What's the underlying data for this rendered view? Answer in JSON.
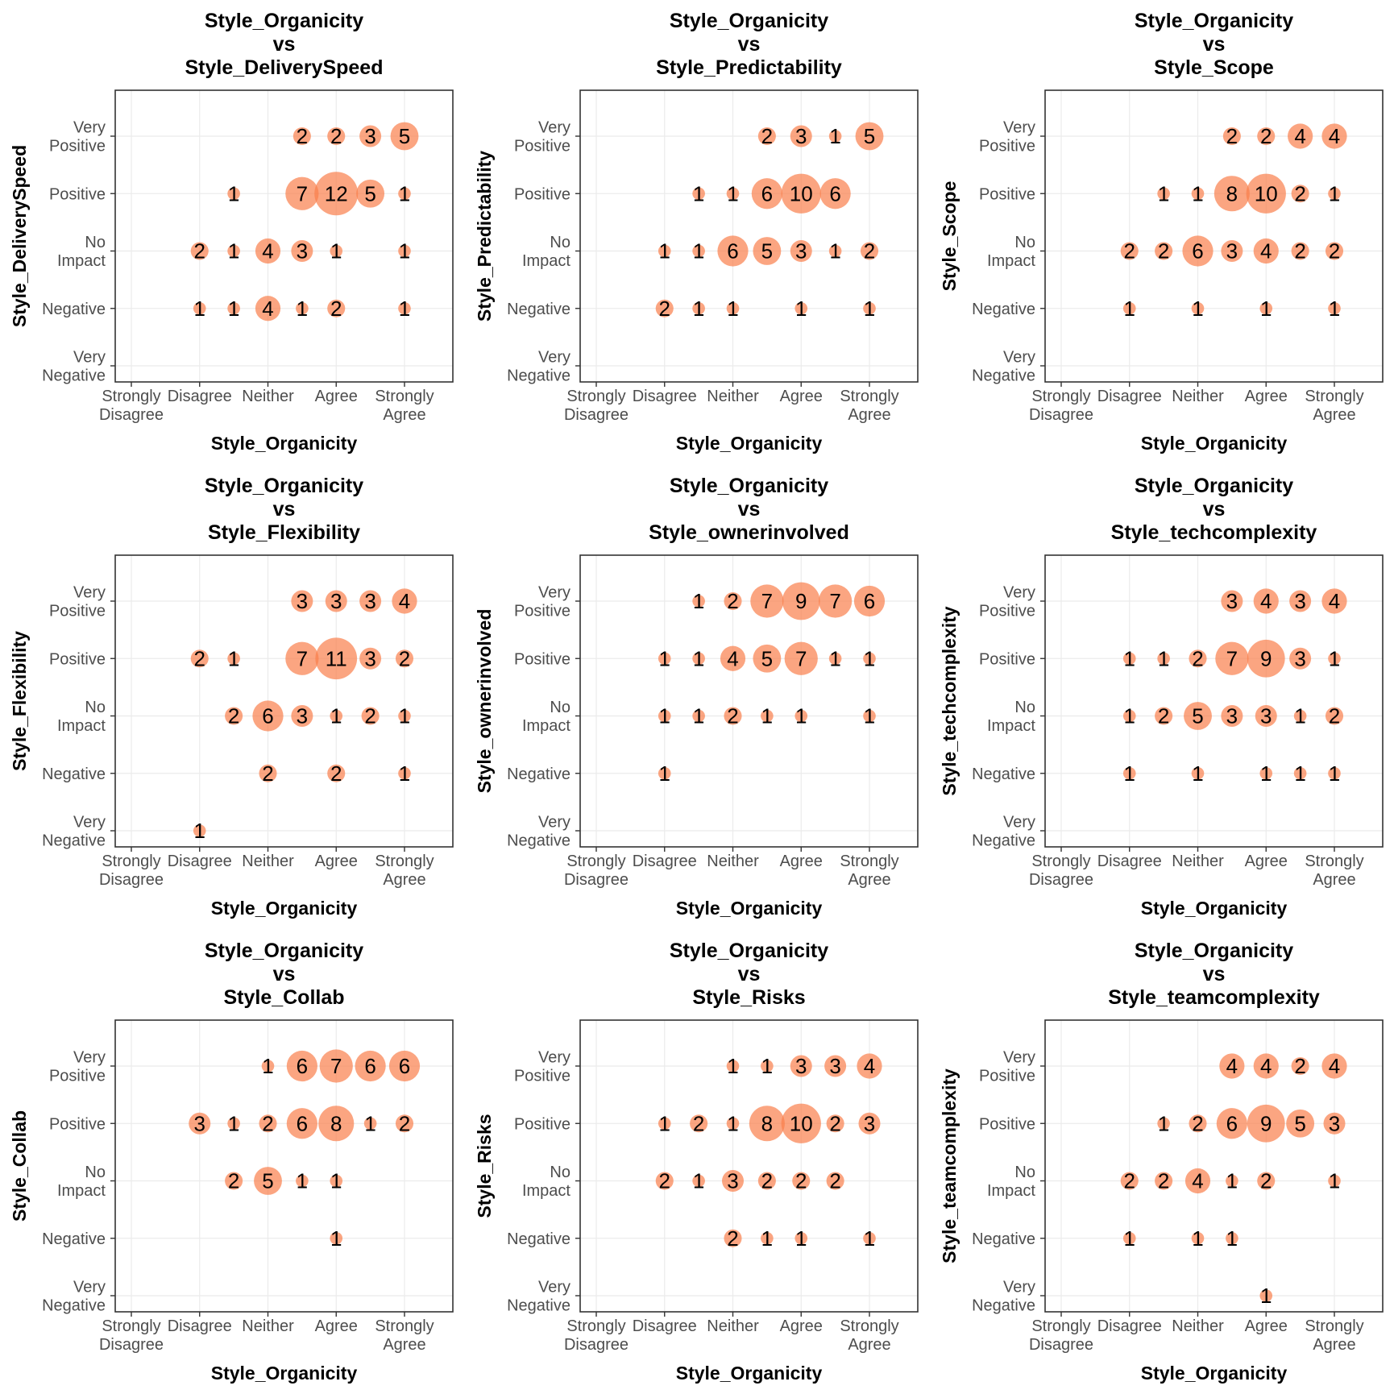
{
  "style": {
    "bubble_fill": "#fa7f4c",
    "bubble_opacity": 0.7,
    "grid_color": "#ebebeb",
    "frame_color": "#333333"
  },
  "x_categories": [
    "Strongly Disagree",
    "Disagree",
    "Neither",
    "Agree",
    "Strongly Agree"
  ],
  "y_categories": [
    "Very Negative",
    "Negative",
    "No Impact",
    "Positive",
    "Very Positive"
  ],
  "chart_data": [
    {
      "type": "scatter",
      "title": "Style_Organicity vs Style_DeliverySpeed",
      "title_lines": [
        "Style_Organicity",
        "vs",
        "Style_DeliverySpeed"
      ],
      "xlabel": "Style_Organicity",
      "ylabel": "Style_DeliverySpeed",
      "points": [
        {
          "x": 3.5,
          "y": 5,
          "n": 2
        },
        {
          "x": 4,
          "y": 5,
          "n": 2
        },
        {
          "x": 4.5,
          "y": 5,
          "n": 3
        },
        {
          "x": 5,
          "y": 5,
          "n": 5
        },
        {
          "x": 2.5,
          "y": 4,
          "n": 1
        },
        {
          "x": 3.5,
          "y": 4,
          "n": 7
        },
        {
          "x": 4,
          "y": 4,
          "n": 12
        },
        {
          "x": 4.5,
          "y": 4,
          "n": 5
        },
        {
          "x": 5,
          "y": 4,
          "n": 1
        },
        {
          "x": 2,
          "y": 3,
          "n": 2
        },
        {
          "x": 2.5,
          "y": 3,
          "n": 1
        },
        {
          "x": 3,
          "y": 3,
          "n": 4
        },
        {
          "x": 3.5,
          "y": 3,
          "n": 3
        },
        {
          "x": 4,
          "y": 3,
          "n": 1
        },
        {
          "x": 5,
          "y": 3,
          "n": 1
        },
        {
          "x": 2,
          "y": 2,
          "n": 1
        },
        {
          "x": 2.5,
          "y": 2,
          "n": 1
        },
        {
          "x": 3,
          "y": 2,
          "n": 4
        },
        {
          "x": 3.5,
          "y": 2,
          "n": 1
        },
        {
          "x": 4,
          "y": 2,
          "n": 2
        },
        {
          "x": 5,
          "y": 2,
          "n": 1
        }
      ]
    },
    {
      "type": "scatter",
      "title": "Style_Organicity vs Style_Predictability",
      "title_lines": [
        "Style_Organicity",
        "vs",
        "Style_Predictability"
      ],
      "xlabel": "Style_Organicity",
      "ylabel": "Style_Predictability",
      "points": [
        {
          "x": 3.5,
          "y": 5,
          "n": 2
        },
        {
          "x": 4,
          "y": 5,
          "n": 3
        },
        {
          "x": 4.5,
          "y": 5,
          "n": 1
        },
        {
          "x": 5,
          "y": 5,
          "n": 5
        },
        {
          "x": 2.5,
          "y": 4,
          "n": 1
        },
        {
          "x": 3,
          "y": 4,
          "n": 1
        },
        {
          "x": 3.5,
          "y": 4,
          "n": 6
        },
        {
          "x": 4,
          "y": 4,
          "n": 10
        },
        {
          "x": 4.5,
          "y": 4,
          "n": 6
        },
        {
          "x": 2,
          "y": 3,
          "n": 1
        },
        {
          "x": 2.5,
          "y": 3,
          "n": 1
        },
        {
          "x": 3,
          "y": 3,
          "n": 6
        },
        {
          "x": 3.5,
          "y": 3,
          "n": 5
        },
        {
          "x": 4,
          "y": 3,
          "n": 3
        },
        {
          "x": 4.5,
          "y": 3,
          "n": 1
        },
        {
          "x": 5,
          "y": 3,
          "n": 2
        },
        {
          "x": 2,
          "y": 2,
          "n": 2
        },
        {
          "x": 2.5,
          "y": 2,
          "n": 1
        },
        {
          "x": 3,
          "y": 2,
          "n": 1
        },
        {
          "x": 4,
          "y": 2,
          "n": 1
        },
        {
          "x": 5,
          "y": 2,
          "n": 1
        }
      ]
    },
    {
      "type": "scatter",
      "title": "Style_Organicity vs Style_Scope",
      "title_lines": [
        "Style_Organicity",
        "vs",
        "Style_Scope"
      ],
      "xlabel": "Style_Organicity",
      "ylabel": "Style_Scope",
      "points": [
        {
          "x": 3.5,
          "y": 5,
          "n": 2
        },
        {
          "x": 4,
          "y": 5,
          "n": 2
        },
        {
          "x": 4.5,
          "y": 5,
          "n": 4
        },
        {
          "x": 5,
          "y": 5,
          "n": 4
        },
        {
          "x": 2.5,
          "y": 4,
          "n": 1
        },
        {
          "x": 3,
          "y": 4,
          "n": 1
        },
        {
          "x": 3.5,
          "y": 4,
          "n": 8
        },
        {
          "x": 4,
          "y": 4,
          "n": 10
        },
        {
          "x": 4.5,
          "y": 4,
          "n": 2
        },
        {
          "x": 5,
          "y": 4,
          "n": 1
        },
        {
          "x": 2,
          "y": 3,
          "n": 2
        },
        {
          "x": 2.5,
          "y": 3,
          "n": 2
        },
        {
          "x": 3,
          "y": 3,
          "n": 6
        },
        {
          "x": 3.5,
          "y": 3,
          "n": 3
        },
        {
          "x": 4,
          "y": 3,
          "n": 4
        },
        {
          "x": 4.5,
          "y": 3,
          "n": 2
        },
        {
          "x": 5,
          "y": 3,
          "n": 2
        },
        {
          "x": 2,
          "y": 2,
          "n": 1
        },
        {
          "x": 3,
          "y": 2,
          "n": 1
        },
        {
          "x": 4,
          "y": 2,
          "n": 1
        },
        {
          "x": 5,
          "y": 2,
          "n": 1
        }
      ]
    },
    {
      "type": "scatter",
      "title": "Style_Organicity vs Style_Flexibility",
      "title_lines": [
        "Style_Organicity",
        "vs",
        "Style_Flexibility"
      ],
      "xlabel": "Style_Organicity",
      "ylabel": "Style_Flexibility",
      "points": [
        {
          "x": 3.5,
          "y": 5,
          "n": 3
        },
        {
          "x": 4,
          "y": 5,
          "n": 3
        },
        {
          "x": 4.5,
          "y": 5,
          "n": 3
        },
        {
          "x": 5,
          "y": 5,
          "n": 4
        },
        {
          "x": 2,
          "y": 4,
          "n": 2
        },
        {
          "x": 2.5,
          "y": 4,
          "n": 1
        },
        {
          "x": 3.5,
          "y": 4,
          "n": 7
        },
        {
          "x": 4,
          "y": 4,
          "n": 11
        },
        {
          "x": 4.5,
          "y": 4,
          "n": 3
        },
        {
          "x": 5,
          "y": 4,
          "n": 2
        },
        {
          "x": 2.5,
          "y": 3,
          "n": 2
        },
        {
          "x": 3,
          "y": 3,
          "n": 6
        },
        {
          "x": 3.5,
          "y": 3,
          "n": 3
        },
        {
          "x": 4,
          "y": 3,
          "n": 1
        },
        {
          "x": 4.5,
          "y": 3,
          "n": 2
        },
        {
          "x": 5,
          "y": 3,
          "n": 1
        },
        {
          "x": 3,
          "y": 2,
          "n": 2
        },
        {
          "x": 4,
          "y": 2,
          "n": 2
        },
        {
          "x": 5,
          "y": 2,
          "n": 1
        },
        {
          "x": 2,
          "y": 1,
          "n": 1
        }
      ]
    },
    {
      "type": "scatter",
      "title": "Style_Organicity vs Style_ownerinvolved",
      "title_lines": [
        "Style_Organicity",
        "vs",
        "Style_ownerinvolved"
      ],
      "xlabel": "Style_Organicity",
      "ylabel": "Style_ownerinvolved",
      "points": [
        {
          "x": 2.5,
          "y": 5,
          "n": 1
        },
        {
          "x": 3,
          "y": 5,
          "n": 2
        },
        {
          "x": 3.5,
          "y": 5,
          "n": 7
        },
        {
          "x": 4,
          "y": 5,
          "n": 9
        },
        {
          "x": 4.5,
          "y": 5,
          "n": 7
        },
        {
          "x": 5,
          "y": 5,
          "n": 6
        },
        {
          "x": 2,
          "y": 4,
          "n": 1
        },
        {
          "x": 2.5,
          "y": 4,
          "n": 1
        },
        {
          "x": 3,
          "y": 4,
          "n": 4
        },
        {
          "x": 3.5,
          "y": 4,
          "n": 5
        },
        {
          "x": 4,
          "y": 4,
          "n": 7
        },
        {
          "x": 4.5,
          "y": 4,
          "n": 1
        },
        {
          "x": 5,
          "y": 4,
          "n": 1
        },
        {
          "x": 2,
          "y": 3,
          "n": 1
        },
        {
          "x": 2.5,
          "y": 3,
          "n": 1
        },
        {
          "x": 3,
          "y": 3,
          "n": 2
        },
        {
          "x": 3.5,
          "y": 3,
          "n": 1
        },
        {
          "x": 4,
          "y": 3,
          "n": 1
        },
        {
          "x": 5,
          "y": 3,
          "n": 1
        },
        {
          "x": 2,
          "y": 2,
          "n": 1
        }
      ]
    },
    {
      "type": "scatter",
      "title": "Style_Organicity vs Style_techcomplexity",
      "title_lines": [
        "Style_Organicity",
        "vs",
        "Style_techcomplexity"
      ],
      "xlabel": "Style_Organicity",
      "ylabel": "Style_techcomplexity",
      "points": [
        {
          "x": 3.5,
          "y": 5,
          "n": 3
        },
        {
          "x": 4,
          "y": 5,
          "n": 4
        },
        {
          "x": 4.5,
          "y": 5,
          "n": 3
        },
        {
          "x": 5,
          "y": 5,
          "n": 4
        },
        {
          "x": 2,
          "y": 4,
          "n": 1
        },
        {
          "x": 2.5,
          "y": 4,
          "n": 1
        },
        {
          "x": 3,
          "y": 4,
          "n": 2
        },
        {
          "x": 3.5,
          "y": 4,
          "n": 7
        },
        {
          "x": 4,
          "y": 4,
          "n": 9
        },
        {
          "x": 4.5,
          "y": 4,
          "n": 3
        },
        {
          "x": 5,
          "y": 4,
          "n": 1
        },
        {
          "x": 2,
          "y": 3,
          "n": 1
        },
        {
          "x": 2.5,
          "y": 3,
          "n": 2
        },
        {
          "x": 3,
          "y": 3,
          "n": 5
        },
        {
          "x": 3.5,
          "y": 3,
          "n": 3
        },
        {
          "x": 4,
          "y": 3,
          "n": 3
        },
        {
          "x": 4.5,
          "y": 3,
          "n": 1
        },
        {
          "x": 5,
          "y": 3,
          "n": 2
        },
        {
          "x": 2,
          "y": 2,
          "n": 1
        },
        {
          "x": 3,
          "y": 2,
          "n": 1
        },
        {
          "x": 4,
          "y": 2,
          "n": 1
        },
        {
          "x": 4.5,
          "y": 2,
          "n": 1
        },
        {
          "x": 5,
          "y": 2,
          "n": 1
        }
      ]
    },
    {
      "type": "scatter",
      "title": "Style_Organicity vs Style_Collab",
      "title_lines": [
        "Style_Organicity",
        "vs",
        "Style_Collab"
      ],
      "xlabel": "Style_Organicity",
      "ylabel": "Style_Collab",
      "points": [
        {
          "x": 3,
          "y": 5,
          "n": 1
        },
        {
          "x": 3.5,
          "y": 5,
          "n": 6
        },
        {
          "x": 4,
          "y": 5,
          "n": 7
        },
        {
          "x": 4.5,
          "y": 5,
          "n": 6
        },
        {
          "x": 5,
          "y": 5,
          "n": 6
        },
        {
          "x": 2,
          "y": 4,
          "n": 3
        },
        {
          "x": 2.5,
          "y": 4,
          "n": 1
        },
        {
          "x": 3,
          "y": 4,
          "n": 2
        },
        {
          "x": 3.5,
          "y": 4,
          "n": 6
        },
        {
          "x": 4,
          "y": 4,
          "n": 8
        },
        {
          "x": 4.5,
          "y": 4,
          "n": 1
        },
        {
          "x": 5,
          "y": 4,
          "n": 2
        },
        {
          "x": 2.5,
          "y": 3,
          "n": 2
        },
        {
          "x": 3,
          "y": 3,
          "n": 5
        },
        {
          "x": 3.5,
          "y": 3,
          "n": 1
        },
        {
          "x": 4,
          "y": 3,
          "n": 1
        },
        {
          "x": 4,
          "y": 2,
          "n": 1
        }
      ]
    },
    {
      "type": "scatter",
      "title": "Style_Organicity vs Style_Risks",
      "title_lines": [
        "Style_Organicity",
        "vs",
        "Style_Risks"
      ],
      "xlabel": "Style_Organicity",
      "ylabel": "Style_Risks",
      "points": [
        {
          "x": 3,
          "y": 5,
          "n": 1
        },
        {
          "x": 3.5,
          "y": 5,
          "n": 1
        },
        {
          "x": 4,
          "y": 5,
          "n": 3
        },
        {
          "x": 4.5,
          "y": 5,
          "n": 3
        },
        {
          "x": 5,
          "y": 5,
          "n": 4
        },
        {
          "x": 2,
          "y": 4,
          "n": 1
        },
        {
          "x": 2.5,
          "y": 4,
          "n": 2
        },
        {
          "x": 3,
          "y": 4,
          "n": 1
        },
        {
          "x": 3.5,
          "y": 4,
          "n": 8
        },
        {
          "x": 4,
          "y": 4,
          "n": 10
        },
        {
          "x": 4.5,
          "y": 4,
          "n": 2
        },
        {
          "x": 5,
          "y": 4,
          "n": 3
        },
        {
          "x": 2,
          "y": 3,
          "n": 2
        },
        {
          "x": 2.5,
          "y": 3,
          "n": 1
        },
        {
          "x": 3,
          "y": 3,
          "n": 3
        },
        {
          "x": 3.5,
          "y": 3,
          "n": 2
        },
        {
          "x": 4,
          "y": 3,
          "n": 2
        },
        {
          "x": 4.5,
          "y": 3,
          "n": 2
        },
        {
          "x": 3,
          "y": 2,
          "n": 2
        },
        {
          "x": 3.5,
          "y": 2,
          "n": 1
        },
        {
          "x": 4,
          "y": 2,
          "n": 1
        },
        {
          "x": 5,
          "y": 2,
          "n": 1
        }
      ]
    },
    {
      "type": "scatter",
      "title": "Style_Organicity vs Style_teamcomplexity",
      "title_lines": [
        "Style_Organicity",
        "vs",
        "Style_teamcomplexity"
      ],
      "xlabel": "Style_Organicity",
      "ylabel": "Style_teamcomplexity",
      "points": [
        {
          "x": 3.5,
          "y": 5,
          "n": 4
        },
        {
          "x": 4,
          "y": 5,
          "n": 4
        },
        {
          "x": 4.5,
          "y": 5,
          "n": 2
        },
        {
          "x": 5,
          "y": 5,
          "n": 4
        },
        {
          "x": 2.5,
          "y": 4,
          "n": 1
        },
        {
          "x": 3,
          "y": 4,
          "n": 2
        },
        {
          "x": 3.5,
          "y": 4,
          "n": 6
        },
        {
          "x": 4,
          "y": 4,
          "n": 9
        },
        {
          "x": 4.5,
          "y": 4,
          "n": 5
        },
        {
          "x": 5,
          "y": 4,
          "n": 3
        },
        {
          "x": 2,
          "y": 3,
          "n": 2
        },
        {
          "x": 2.5,
          "y": 3,
          "n": 2
        },
        {
          "x": 3,
          "y": 3,
          "n": 4
        },
        {
          "x": 3.5,
          "y": 3,
          "n": 1
        },
        {
          "x": 4,
          "y": 3,
          "n": 2
        },
        {
          "x": 5,
          "y": 3,
          "n": 1
        },
        {
          "x": 2,
          "y": 2,
          "n": 1
        },
        {
          "x": 3,
          "y": 2,
          "n": 1
        },
        {
          "x": 3.5,
          "y": 2,
          "n": 1
        },
        {
          "x": 4,
          "y": 1,
          "n": 1
        }
      ]
    }
  ]
}
